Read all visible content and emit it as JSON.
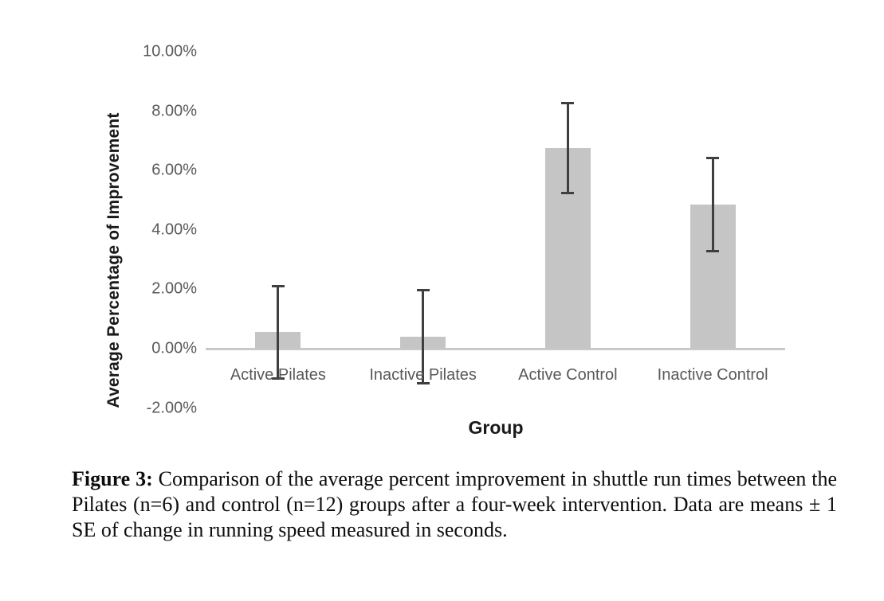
{
  "figure": {
    "caption_label": "Figure 3:",
    "caption_text": "Comparison of the average percent improvement in shuttle run times between the Pilates (n=6) and control (n=12) groups after a four-week intervention. Data are means ± 1 SE of change in running speed measured in seconds."
  },
  "chart_data": {
    "type": "bar",
    "title": "",
    "xlabel": "Group",
    "ylabel": "Average Percentage of Improvement",
    "categories": [
      "Active Pilates",
      "Inactive Pilates",
      "Active Control",
      "Inactive Control"
    ],
    "values": [
      0.55,
      0.4,
      6.75,
      4.85
    ],
    "errors_se": [
      1.6,
      1.6,
      1.55,
      1.6
    ],
    "value_unit": "percent",
    "ylim": [
      -2,
      10
    ],
    "yticks": [
      {
        "value": 10,
        "label": "10.00%"
      },
      {
        "value": 8,
        "label": "8.00%"
      },
      {
        "value": 6,
        "label": "6.00%"
      },
      {
        "value": 4,
        "label": "4.00%"
      },
      {
        "value": 2,
        "label": "2.00%"
      },
      {
        "value": 0,
        "label": "0.00%"
      },
      {
        "value": -2,
        "label": "-2.00%"
      }
    ],
    "grid": false,
    "legend": false,
    "bar_color": "#c5c5c5",
    "error_bar_color": "#3f3f3f",
    "axis_line_color": "#c9c9c9",
    "tick_label_color": "#595959",
    "axis_title_color": "#1a1a1a"
  }
}
